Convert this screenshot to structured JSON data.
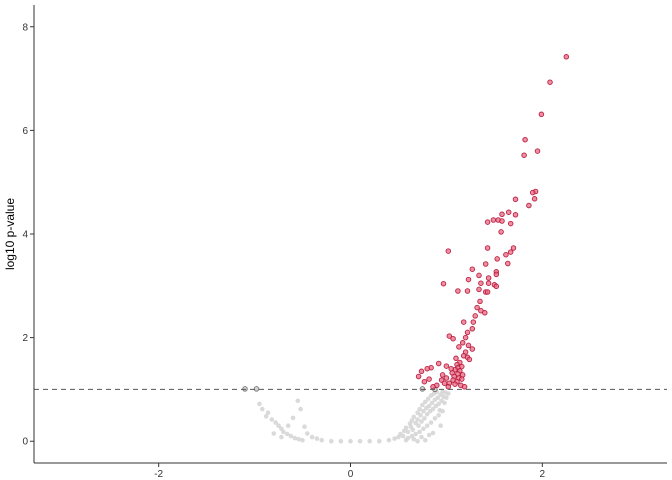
{
  "chart_data": {
    "type": "scatter",
    "title": "",
    "xlabel": "",
    "ylabel": "log10 p-value",
    "xlim": [
      -3.3,
      3.3
    ],
    "ylim": [
      -0.42,
      8.42
    ],
    "x_ticks": [
      -2,
      0,
      2
    ],
    "x_tick_labels": [
      "-2",
      "0",
      "2"
    ],
    "y_ticks": [
      0,
      2,
      4,
      6,
      8
    ],
    "y_tick_labels": [
      "0",
      "2",
      "4",
      "6",
      "8"
    ],
    "threshold_y": 1.0,
    "grid": false,
    "colors": {
      "significant_fill": "#e8697f",
      "significant_stroke": "#b5123a",
      "nonsignificant_gray": "#d3d3d3",
      "threshold_line": "#555555"
    },
    "series": [
      {
        "points": [
          [
            2.25,
            7.42
          ],
          [
            2.08,
            6.93
          ],
          [
            1.99,
            6.31
          ],
          [
            1.95,
            5.6
          ],
          [
            1.82,
            5.82
          ],
          [
            1.81,
            5.52
          ],
          [
            1.93,
            4.82
          ],
          [
            1.9,
            4.8
          ],
          [
            1.92,
            4.68
          ],
          [
            1.86,
            4.55
          ],
          [
            1.72,
            4.67
          ],
          [
            1.65,
            4.42
          ],
          [
            1.58,
            4.38
          ],
          [
            1.72,
            4.37
          ],
          [
            1.49,
            4.27
          ],
          [
            1.54,
            4.27
          ],
          [
            1.58,
            4.25
          ],
          [
            1.43,
            4.23
          ],
          [
            1.57,
            4.04
          ],
          [
            1.67,
            4.2
          ],
          [
            1.7,
            3.73
          ],
          [
            1.67,
            3.65
          ],
          [
            1.62,
            3.6
          ],
          [
            1.43,
            3.73
          ],
          [
            1.53,
            3.52
          ],
          [
            1.64,
            3.43
          ],
          [
            1.02,
            3.67
          ],
          [
            1.41,
            3.42
          ],
          [
            1.34,
            3.2
          ],
          [
            1.27,
            3.32
          ],
          [
            1.23,
            3.12
          ],
          [
            1.52,
            3.27
          ],
          [
            1.52,
            3.22
          ],
          [
            1.44,
            3.15
          ],
          [
            1.44,
            3.05
          ],
          [
            1.36,
            3.05
          ],
          [
            1.5,
            3.02
          ],
          [
            1.52,
            2.99
          ],
          [
            0.97,
            3.04
          ],
          [
            1.12,
            2.9
          ],
          [
            1.22,
            2.9
          ],
          [
            1.34,
            2.93
          ],
          [
            1.41,
            2.88
          ],
          [
            1.43,
            2.88
          ],
          [
            1.35,
            2.7
          ],
          [
            1.32,
            2.58
          ],
          [
            1.36,
            2.52
          ],
          [
            1.4,
            2.48
          ],
          [
            1.3,
            2.42
          ],
          [
            1.28,
            2.3
          ],
          [
            1.18,
            2.3
          ],
          [
            1.27,
            2.17
          ],
          [
            1.22,
            2.1
          ],
          [
            1.2,
            2.0
          ],
          [
            1.03,
            2.03
          ],
          [
            1.07,
            1.98
          ],
          [
            1.17,
            1.9
          ],
          [
            1.23,
            1.85
          ],
          [
            1.13,
            1.82
          ],
          [
            1.27,
            1.78
          ],
          [
            1.2,
            1.72
          ],
          [
            1.18,
            1.65
          ],
          [
            1.22,
            1.62
          ],
          [
            1.24,
            1.58
          ],
          [
            1.1,
            1.6
          ],
          [
            1.14,
            1.52
          ],
          [
            1.11,
            1.48
          ],
          [
            1.16,
            1.44
          ],
          [
            1.12,
            1.42
          ],
          [
            1.09,
            1.38
          ],
          [
            1.14,
            1.36
          ],
          [
            1.06,
            1.32
          ],
          [
            1.12,
            1.3
          ],
          [
            1.17,
            1.28
          ],
          [
            1.08,
            1.25
          ],
          [
            1.13,
            1.22
          ],
          [
            1.16,
            1.2
          ],
          [
            1.07,
            1.18
          ],
          [
            1.11,
            1.15
          ],
          [
            1.03,
            1.12
          ],
          [
            1.09,
            1.1
          ],
          [
            1.15,
            1.08
          ],
          [
            1.02,
            1.05
          ],
          [
            1.19,
            1.05
          ],
          [
            0.92,
            1.5
          ],
          [
            0.84,
            1.42
          ],
          [
            0.8,
            1.4
          ],
          [
            0.74,
            1.35
          ],
          [
            0.71,
            1.25
          ],
          [
            0.82,
            1.2
          ],
          [
            0.77,
            1.15
          ],
          [
            0.95,
            1.18
          ],
          [
            0.98,
            1.12
          ],
          [
            0.9,
            1.08
          ],
          [
            0.86,
            1.05
          ],
          [
            1.0,
            1.22
          ],
          [
            0.96,
            1.28
          ],
          [
            1.05,
            1.4
          ],
          [
            1.0,
            1.45
          ]
        ]
      },
      {
        "points": [
          [
            -1.1,
            1.01
          ],
          [
            -0.98,
            1.01
          ],
          [
            0.75,
            1.01
          ],
          [
            0.88,
            1.0
          ]
        ]
      },
      {
        "points": [
          [
            -0.95,
            0.72
          ],
          [
            -0.92,
            0.62
          ],
          [
            -0.88,
            0.48
          ],
          [
            -0.86,
            0.55
          ],
          [
            -0.82,
            0.42
          ],
          [
            -0.78,
            0.36
          ],
          [
            -0.75,
            0.3
          ],
          [
            -0.72,
            0.24
          ],
          [
            -0.7,
            0.18
          ],
          [
            -0.66,
            0.14
          ],
          [
            -0.62,
            0.1
          ],
          [
            -0.58,
            0.06
          ],
          [
            -0.54,
            0.04
          ],
          [
            -0.5,
            0.02
          ],
          [
            -0.55,
            0.78
          ],
          [
            -0.52,
            0.62
          ],
          [
            -0.6,
            0.45
          ],
          [
            -0.48,
            0.28
          ],
          [
            -0.45,
            0.15
          ],
          [
            -0.4,
            0.08
          ],
          [
            -0.35,
            0.05
          ],
          [
            -0.72,
            0.08
          ],
          [
            -0.8,
            0.15
          ],
          [
            -0.65,
            0.3
          ],
          [
            -0.3,
            0.02
          ],
          [
            -0.2,
            0.0
          ],
          [
            -0.1,
            0.0
          ],
          [
            0.0,
            0.0
          ],
          [
            0.1,
            0.0
          ],
          [
            0.2,
            0.0
          ],
          [
            0.3,
            0.0
          ],
          [
            0.4,
            0.02
          ],
          [
            0.46,
            0.05
          ],
          [
            0.5,
            0.08
          ],
          [
            0.52,
            0.14
          ],
          [
            0.55,
            0.1
          ],
          [
            0.56,
            0.2
          ],
          [
            0.58,
            0.26
          ],
          [
            0.6,
            0.18
          ],
          [
            0.62,
            0.34
          ],
          [
            0.63,
            0.28
          ],
          [
            0.64,
            0.4
          ],
          [
            0.65,
            0.22
          ],
          [
            0.66,
            0.47
          ],
          [
            0.68,
            0.35
          ],
          [
            0.7,
            0.55
          ],
          [
            0.7,
            0.42
          ],
          [
            0.71,
            0.3
          ],
          [
            0.72,
            0.62
          ],
          [
            0.73,
            0.5
          ],
          [
            0.74,
            0.38
          ],
          [
            0.75,
            0.7
          ],
          [
            0.76,
            0.58
          ],
          [
            0.77,
            0.44
          ],
          [
            0.78,
            0.76
          ],
          [
            0.79,
            0.64
          ],
          [
            0.8,
            0.52
          ],
          [
            0.81,
            0.82
          ],
          [
            0.82,
            0.68
          ],
          [
            0.83,
            0.58
          ],
          [
            0.84,
            0.88
          ],
          [
            0.85,
            0.74
          ],
          [
            0.86,
            0.62
          ],
          [
            0.87,
            0.92
          ],
          [
            0.88,
            0.8
          ],
          [
            0.89,
            0.68
          ],
          [
            0.9,
            0.95
          ],
          [
            0.91,
            0.84
          ],
          [
            0.92,
            0.72
          ],
          [
            0.93,
            0.6
          ],
          [
            0.94,
            0.9
          ],
          [
            0.95,
            0.78
          ],
          [
            0.96,
            0.96
          ],
          [
            0.97,
            0.86
          ],
          [
            0.98,
            0.74
          ],
          [
            0.99,
            0.94
          ],
          [
            1.0,
            0.84
          ],
          [
            1.02,
            0.92
          ],
          [
            0.6,
            0.06
          ],
          [
            0.64,
            0.1
          ],
          [
            0.68,
            0.14
          ],
          [
            0.72,
            0.18
          ],
          [
            0.76,
            0.24
          ],
          [
            0.8,
            0.3
          ],
          [
            0.84,
            0.36
          ],
          [
            0.88,
            0.44
          ],
          [
            0.92,
            0.5
          ],
          [
            0.96,
            0.58
          ],
          [
            0.66,
            0.04
          ],
          [
            0.74,
            0.08
          ],
          [
            0.82,
            0.12
          ],
          [
            0.58,
            0.02
          ],
          [
            0.7,
            0.0
          ],
          [
            0.78,
            0.02
          ],
          [
            0.86,
            0.16
          ],
          [
            0.94,
            0.3
          ]
        ]
      }
    ]
  }
}
